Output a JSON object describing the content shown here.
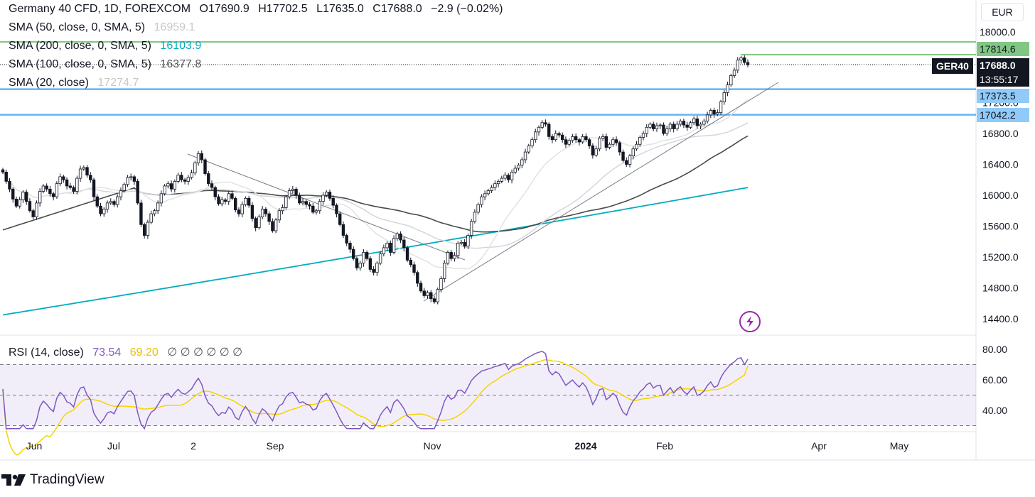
{
  "header": {
    "symbol_line": "Germany 40 CFD, 1D, FOREXCOM",
    "open": "O17690.9",
    "high": "H17702.5",
    "low": "L17635.0",
    "close": "C17688.0",
    "change": "−2.9 (−0.02%)"
  },
  "indicators": {
    "sma50": {
      "label": "SMA (50, close, 0, SMA, 5)",
      "value": "16959.1",
      "color": "#c0c3cb"
    },
    "sma200": {
      "label": "SMA (200, close, 0, SMA, 5)",
      "value": "16103.9",
      "color": "#00acc1"
    },
    "sma100": {
      "label": "SMA (100, close, 0, SMA, 5)",
      "value": "16377.8",
      "color": "#4a4a4a"
    },
    "sma20": {
      "label": "SMA (20, close)",
      "value": "17274.7",
      "color": "#c8c8c8"
    },
    "rsi": {
      "label": "RSI (14, close)",
      "value": "73.54",
      "ma_value": "69.20",
      "extra": "∅ ∅ ∅ ∅ ∅ ∅",
      "color": "#7e57c2",
      "ma_color": "#f5d400"
    }
  },
  "currency": "EUR",
  "ticker_label": "GER40",
  "last_price": "17688.0",
  "countdown": "13:55:17",
  "price_levels": [
    {
      "label": "17814.6",
      "value": 17814.6,
      "color": "#81c784"
    },
    {
      "label": "17373.5",
      "value": 17373.5,
      "color": "#64b5f6"
    },
    {
      "label": "17042.2",
      "value": 17042.2,
      "color": "#64b5f6"
    }
  ],
  "top_axis_label": "18000.0",
  "flash_icon": "lightning-icon",
  "brand": "TradingView",
  "brand_icon": "tradingview-logo-icon",
  "chart_data": [
    {
      "type": "candlestick",
      "title": "Germany 40 CFD, 1D, FOREXCOM",
      "y_ticks": [
        "14400.0",
        "14800.0",
        "15200.0",
        "15600.0",
        "16000.0",
        "16400.0",
        "16800.0",
        "17200.0"
      ],
      "ylim": [
        14250,
        18050
      ],
      "x_ticks": [
        "Jun",
        "Jul",
        "2",
        "Sep",
        "Nov",
        "2024",
        "Feb",
        "Apr",
        "May"
      ],
      "trendlines": [
        {
          "from": [
            "2023-07-27",
            16560
          ],
          "to": [
            "2023-11-07",
            15150
          ]
        },
        {
          "from": [
            "2023-10-30",
            14600
          ],
          "to": [
            "2024-03-07",
            17500
          ]
        }
      ],
      "series": [
        {
          "name": "Germany 40 CFD",
          "close": [
            16300,
            16180,
            16080,
            15950,
            15860,
            15940,
            16040,
            15920,
            15800,
            15720,
            15900,
            16050,
            16120,
            16080,
            16020,
            15980,
            16150,
            16240,
            16200,
            16120,
            16100,
            16050,
            16220,
            16340,
            16360,
            16260,
            16200,
            15980,
            15860,
            15760,
            15820,
            15900,
            15920,
            15880,
            15980,
            16060,
            16140,
            16230,
            16240,
            16180,
            15900,
            15620,
            15480,
            15650,
            15760,
            15800,
            15900,
            16020,
            16120,
            16150,
            16080,
            16180,
            16260,
            16200,
            16180,
            16230,
            16290,
            16420,
            16540,
            16460,
            16280,
            16150,
            16100,
            15980,
            15890,
            15940,
            15920,
            16020,
            15960,
            15810,
            15760,
            15880,
            15960,
            15870,
            15700,
            15580,
            15720,
            15820,
            15760,
            15660,
            15540,
            15680,
            15800,
            15840,
            15980,
            16060,
            16080,
            16000,
            15900,
            15920,
            15880,
            15860,
            15780,
            15800,
            15920,
            16000,
            16040,
            15960,
            15870,
            15760,
            15620,
            15480,
            15380,
            15300,
            15180,
            15060,
            15120,
            15260,
            15180,
            15040,
            15000,
            15120,
            15240,
            15320,
            15380,
            15260,
            15440,
            15500,
            15420,
            15320,
            15160,
            15100,
            15000,
            14860,
            14760,
            14700,
            14740,
            14660,
            14620,
            14780,
            14920,
            15120,
            15260,
            15180,
            15220,
            15380,
            15390,
            15340,
            15480,
            15660,
            15780,
            15880,
            15980,
            16020,
            16060,
            16100,
            16150,
            16180,
            16220,
            16260,
            16200,
            16300,
            16350,
            16390,
            16460,
            16560,
            16640,
            16720,
            16820,
            16880,
            16940,
            16920,
            16760,
            16720,
            16800,
            16780,
            16720,
            16660,
            16710,
            16760,
            16720,
            16690,
            16760,
            16720,
            16640,
            16520,
            16600,
            16740,
            16760,
            16620,
            16660,
            16720,
            16680,
            16560,
            16450,
            16400,
            16510,
            16600,
            16660,
            16750,
            16800,
            16880,
            16920,
            16860,
            16900,
            16910,
            16800,
            16860,
            16920,
            16860,
            16920,
            16960,
            16910,
            16880,
            16940,
            16990,
            16900,
            16920,
            16960,
            17040,
            17100,
            17050,
            17070,
            17210,
            17330,
            17430,
            17550,
            17620,
            17750,
            17780,
            17720,
            17688
          ]
        }
      ]
    },
    {
      "type": "line",
      "title": "RSI (14, close)",
      "y_ticks": [
        "40.00",
        "60.00",
        "80.00"
      ],
      "ylim": [
        27,
        90
      ],
      "bands": [
        30,
        50,
        70
      ],
      "series": [
        {
          "name": "RSI",
          "last": 73.54
        },
        {
          "name": "RSI-based MA",
          "last": 69.2
        }
      ]
    }
  ]
}
